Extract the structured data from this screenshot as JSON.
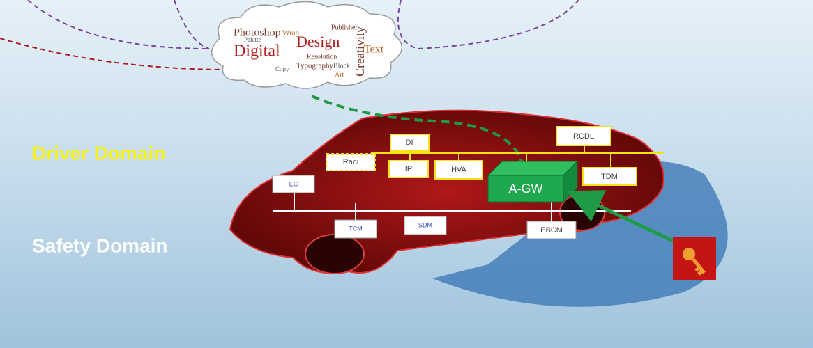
{
  "domains": [
    "Driver Domain",
    "Safety Domain"
  ],
  "nodes": [
    {
      "label": "DI"
    },
    {
      "label": "RCDL"
    },
    {
      "label": "Radi"
    },
    {
      "label": "IP"
    },
    {
      "label": "HVA"
    },
    {
      "label": "A-GW"
    },
    {
      "label": "TDM"
    },
    {
      "label": "EC"
    },
    {
      "label": "TCM"
    },
    {
      "label": "SDM"
    },
    {
      "label": "EBCM"
    }
  ],
  "cloud": {
    "words": [
      "Photoshop",
      "Digital",
      "Design",
      "Creativity",
      "Text",
      "Resolution",
      "Palette",
      "Wrap",
      "Typography",
      "Block",
      "Publisher",
      "Art",
      "Copy"
    ]
  }
}
